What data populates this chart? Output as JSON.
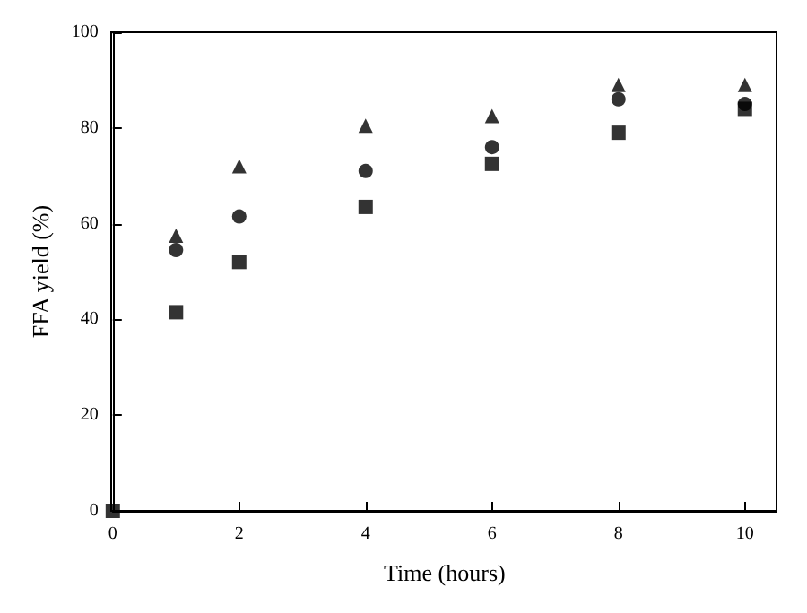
{
  "chart_data": {
    "type": "scatter",
    "xlabel": "Time (hours)",
    "ylabel": "FFA yield (%)",
    "x": [
      0,
      1,
      2,
      4,
      6,
      8,
      10
    ],
    "series": [
      {
        "color": "#000000",
        "marker": "square",
        "values": [
          0,
          41.5,
          52,
          63.5,
          72.5,
          79,
          84
        ]
      },
      {
        "color": "#000000",
        "marker": "circle",
        "values": [
          null,
          54.5,
          61.5,
          71,
          76,
          86,
          85
        ]
      },
      {
        "color": "#000000",
        "marker": "triangle",
        "values": [
          null,
          57.5,
          72,
          80.5,
          82.5,
          89,
          89
        ]
      }
    ],
    "xlim": [
      0,
      10.5
    ],
    "xticks": [
      0,
      2,
      4,
      6,
      8,
      10
    ],
    "ylim": [
      0,
      100
    ],
    "yticks": [
      0,
      20,
      40,
      60,
      80,
      100
    ],
    "grid": false
  }
}
